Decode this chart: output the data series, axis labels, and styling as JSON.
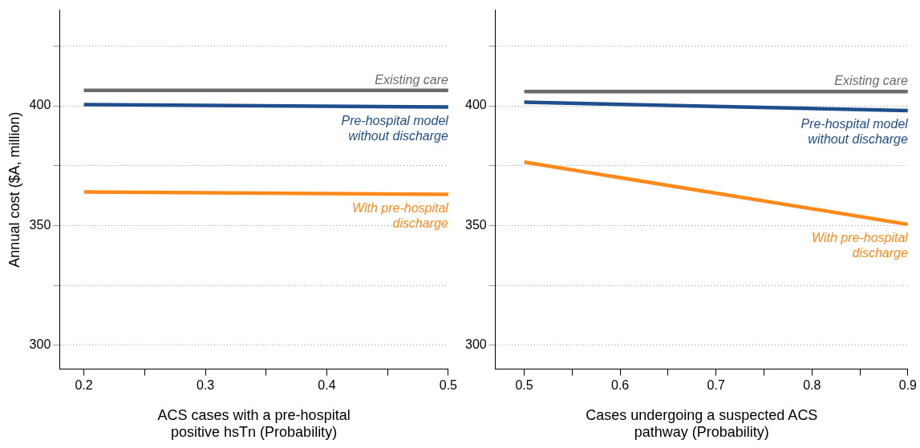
{
  "chart_data": [
    {
      "type": "line",
      "xlabel": "ACS cases with a pre-hospital\npositive hsTn (Probability)",
      "ylabel": "Annual cost ($A, million)",
      "xlim": [
        0.18,
        0.5
      ],
      "ylim": [
        290,
        440
      ],
      "xticks": [
        0.2,
        {
          "value": 0.25,
          "label": null
        },
        0.3,
        {
          "value": 0.35,
          "label": null
        },
        0.4,
        {
          "value": 0.45,
          "label": null
        },
        0.5
      ],
      "yticks": [
        300,
        {
          "value": 325,
          "label": null
        },
        350,
        {
          "value": 375,
          "label": null
        },
        400,
        {
          "value": 425,
          "label": null
        }
      ],
      "grid": "y",
      "legend": false,
      "marker": "none",
      "line_style": "solid",
      "x": [
        0.2,
        0.5
      ],
      "series": [
        {
          "name": "Existing care",
          "color": "#6b6b6b",
          "values": [
            406.5,
            406.5
          ]
        },
        {
          "name": "Pre-hospital model\nwithout discharge",
          "color": "#1f4e8c",
          "values": [
            400.5,
            399.5
          ]
        },
        {
          "name": "With pre-hospital\ndischarge",
          "color": "#ff8a1c",
          "values": [
            364,
            363
          ]
        }
      ]
    },
    {
      "type": "line",
      "xlabel": "Cases undergoing a suspected ACS\npathway (Probability)",
      "xlim": [
        0.47,
        0.9
      ],
      "ylim": [
        290,
        440
      ],
      "xticks": [
        0.5,
        {
          "value": 0.55,
          "label": null
        },
        0.6,
        {
          "value": 0.65,
          "label": null
        },
        0.7,
        {
          "value": 0.75,
          "label": null
        },
        0.8,
        {
          "value": 0.85,
          "label": null
        },
        0.9
      ],
      "yticks": [
        300,
        {
          "value": 325,
          "label": null
        },
        350,
        {
          "value": 375,
          "label": null
        },
        400,
        {
          "value": 425,
          "label": null
        }
      ],
      "grid": "y",
      "legend": false,
      "marker": "none",
      "line_style": "solid",
      "x": [
        0.5,
        0.9
      ],
      "series": [
        {
          "name": "Existing care",
          "color": "#6b6b6b",
          "values": [
            406,
            406
          ]
        },
        {
          "name": "Pre-hospital model\nwithout discharge",
          "color": "#1f4e8c",
          "values": [
            401.5,
            398
          ]
        },
        {
          "name": "With pre-hospital\ndischarge",
          "color": "#ff8a1c",
          "values": [
            376.5,
            350.5
          ]
        }
      ]
    }
  ]
}
